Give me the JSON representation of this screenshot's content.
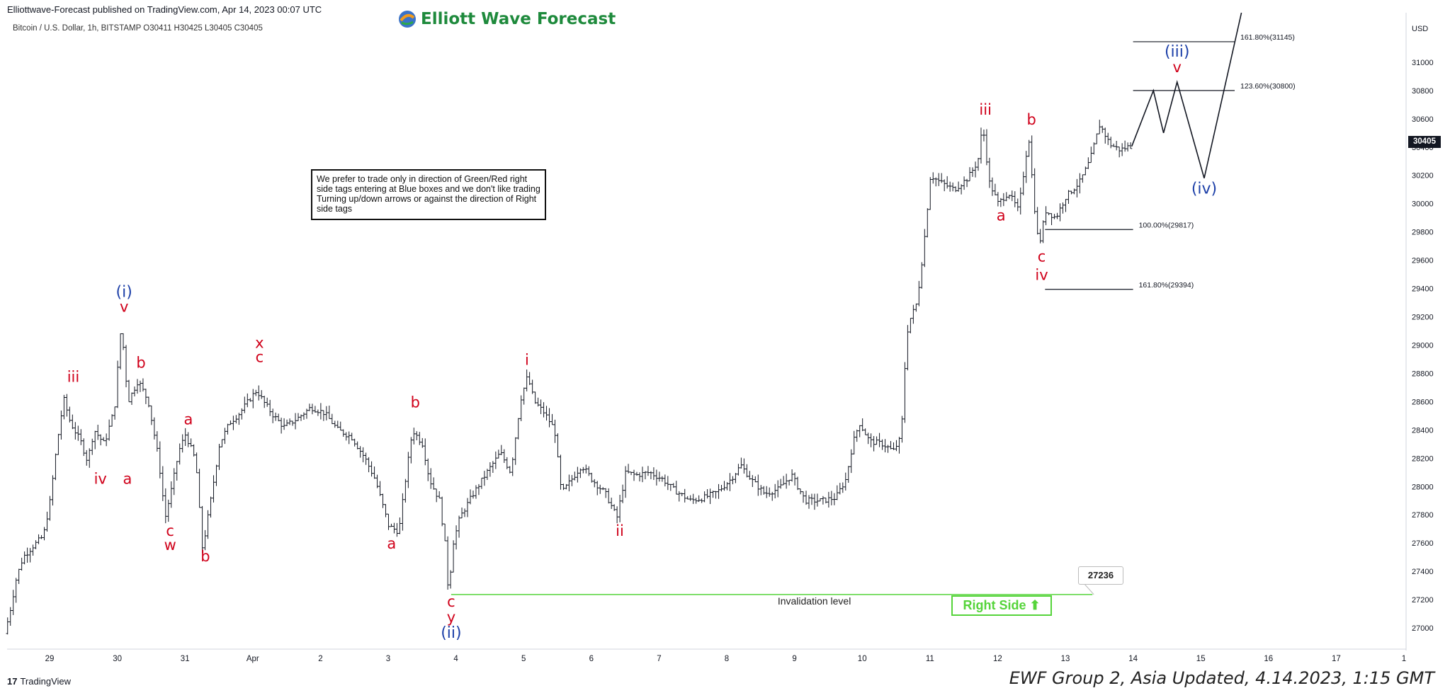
{
  "header": {
    "publisher": "Elliottwave-Forecast published on TradingView.com, Apr 14, 2023 00:07 UTC",
    "symbol_line": "Bitcoin / U.S. Dollar, 1h, BITSTAMP  O30411  H30425  L30405  C30405",
    "brand": "Elliott Wave Forecast"
  },
  "note_box": "We prefer to trade only in direction of Green/Red right side tags entering at Blue boxes and we don't like trading Turning up/down arrows or against the direction of Right side tags",
  "footer": {
    "tradingview": "TradingView",
    "tv_logo": "17",
    "update": "EWF Group 2, Asia Updated, 4.14.2023, 1:15 GMT"
  },
  "badges": {
    "last_price": "30405",
    "invalidation_value": "27236",
    "right_side": "Right Side ⬆",
    "currency": "USD"
  },
  "colors": {
    "red": "#d0021b",
    "blue": "#1c3fa8",
    "green": "#55d43a",
    "text": "#131722"
  },
  "chart_data": {
    "type": "line",
    "ylim": [
      26850,
      31350
    ],
    "y_ticks": [
      27000,
      27200,
      27400,
      27600,
      27800,
      28000,
      28200,
      28400,
      28600,
      28800,
      29000,
      29200,
      29400,
      29600,
      29800,
      30000,
      30200,
      30400,
      30600,
      30800,
      31000
    ],
    "x_ticks": [
      {
        "label": "29",
        "x": 0
      },
      {
        "label": "30",
        "x": 1
      },
      {
        "label": "31",
        "x": 2
      },
      {
        "label": "Apr",
        "x": 3
      },
      {
        "label": "2",
        "x": 4
      },
      {
        "label": "3",
        "x": 5
      },
      {
        "label": "4",
        "x": 6
      },
      {
        "label": "5",
        "x": 7
      },
      {
        "label": "6",
        "x": 8
      },
      {
        "label": "7",
        "x": 9
      },
      {
        "label": "8",
        "x": 10
      },
      {
        "label": "9",
        "x": 11
      },
      {
        "label": "10",
        "x": 12
      },
      {
        "label": "11",
        "x": 13
      },
      {
        "label": "12",
        "x": 14
      },
      {
        "label": "13",
        "x": 15
      },
      {
        "label": "14",
        "x": 16
      },
      {
        "label": "15",
        "x": 17
      },
      {
        "label": "16",
        "x": 18
      },
      {
        "label": "17",
        "x": 19
      },
      {
        "label": "1",
        "x": 20
      }
    ],
    "price_path": [
      [
        -0.62,
        26960
      ],
      [
        -0.55,
        27100
      ],
      [
        -0.45,
        27350
      ],
      [
        -0.35,
        27500
      ],
      [
        -0.2,
        27580
      ],
      [
        -0.05,
        27650
      ],
      [
        0.05,
        27900
      ],
      [
        0.15,
        28300
      ],
      [
        0.25,
        28620
      ],
      [
        0.35,
        28450
      ],
      [
        0.5,
        28320
      ],
      [
        0.6,
        28180
      ],
      [
        0.7,
        28400
      ],
      [
        0.85,
        28300
      ],
      [
        1.0,
        28550
      ],
      [
        1.1,
        29150
      ],
      [
        1.2,
        28600
      ],
      [
        1.35,
        28750
      ],
      [
        1.5,
        28600
      ],
      [
        1.65,
        28200
      ],
      [
        1.75,
        27780
      ],
      [
        1.85,
        28000
      ],
      [
        1.95,
        28250
      ],
      [
        2.05,
        28370
      ],
      [
        2.2,
        28180
      ],
      [
        2.3,
        27550
      ],
      [
        2.42,
        27900
      ],
      [
        2.55,
        28300
      ],
      [
        2.7,
        28450
      ],
      [
        2.85,
        28520
      ],
      [
        3.0,
        28620
      ],
      [
        3.1,
        28680
      ],
      [
        3.2,
        28600
      ],
      [
        3.35,
        28500
      ],
      [
        3.5,
        28420
      ],
      [
        3.7,
        28480
      ],
      [
        3.9,
        28560
      ],
      [
        4.1,
        28520
      ],
      [
        4.3,
        28400
      ],
      [
        4.5,
        28350
      ],
      [
        4.7,
        28200
      ],
      [
        4.85,
        28050
      ],
      [
        5.05,
        27720
      ],
      [
        5.2,
        27680
      ],
      [
        5.3,
        28060
      ],
      [
        5.4,
        28400
      ],
      [
        5.55,
        28300
      ],
      [
        5.65,
        28050
      ],
      [
        5.8,
        27900
      ],
      [
        5.9,
        27520
      ],
      [
        5.93,
        27236
      ],
      [
        6.0,
        27600
      ],
      [
        6.1,
        27780
      ],
      [
        6.3,
        27950
      ],
      [
        6.5,
        28100
      ],
      [
        6.7,
        28240
      ],
      [
        6.85,
        28100
      ],
      [
        7.0,
        28620
      ],
      [
        7.1,
        28780
      ],
      [
        7.2,
        28600
      ],
      [
        7.35,
        28520
      ],
      [
        7.5,
        28400
      ],
      [
        7.6,
        27950
      ],
      [
        7.75,
        28050
      ],
      [
        7.9,
        28150
      ],
      [
        8.05,
        28050
      ],
      [
        8.25,
        27950
      ],
      [
        8.42,
        27780
      ],
      [
        8.55,
        28100
      ],
      [
        8.7,
        28080
      ],
      [
        8.9,
        28100
      ],
      [
        9.1,
        28050
      ],
      [
        9.25,
        27980
      ],
      [
        9.5,
        27900
      ],
      [
        9.7,
        27920
      ],
      [
        9.9,
        27960
      ],
      [
        10.1,
        28050
      ],
      [
        10.25,
        28150
      ],
      [
        10.4,
        28050
      ],
      [
        10.6,
        27950
      ],
      [
        10.8,
        27980
      ],
      [
        11.0,
        28080
      ],
      [
        11.2,
        27900
      ],
      [
        11.45,
        27900
      ],
      [
        11.65,
        27920
      ],
      [
        11.8,
        28050
      ],
      [
        11.9,
        28300
      ],
      [
        12.0,
        28450
      ],
      [
        12.15,
        28320
      ],
      [
        12.35,
        28300
      ],
      [
        12.5,
        28250
      ],
      [
        12.62,
        28350
      ],
      [
        12.65,
        28700
      ],
      [
        12.72,
        29150
      ],
      [
        12.85,
        29300
      ],
      [
        12.95,
        29700
      ],
      [
        13.05,
        30200
      ],
      [
        13.2,
        30150
      ],
      [
        13.4,
        30100
      ],
      [
        13.6,
        30180
      ],
      [
        13.75,
        30300
      ],
      [
        13.82,
        30560
      ],
      [
        13.92,
        30150
      ],
      [
        14.05,
        30000
      ],
      [
        14.2,
        30080
      ],
      [
        14.35,
        29950
      ],
      [
        14.5,
        30480
      ],
      [
        14.58,
        30000
      ],
      [
        14.65,
        29690
      ],
      [
        14.75,
        29950
      ],
      [
        14.9,
        29900
      ],
      [
        15.05,
        30050
      ],
      [
        15.25,
        30150
      ],
      [
        15.4,
        30300
      ],
      [
        15.55,
        30560
      ],
      [
        15.7,
        30420
      ],
      [
        15.85,
        30380
      ],
      [
        15.98,
        30405
      ]
    ],
    "projection": [
      [
        15.98,
        30405
      ],
      [
        16.3,
        30800
      ],
      [
        16.45,
        30500
      ],
      [
        16.65,
        30860
      ],
      [
        17.05,
        30180
      ],
      [
        17.6,
        31350
      ]
    ],
    "fib_levels": [
      {
        "label": "161.80%(31145)",
        "value": 31145,
        "x_from": 16.0,
        "x_to": 17.5
      },
      {
        "label": "123.60%(30800)",
        "value": 30800,
        "x_from": 16.0,
        "x_to": 17.5
      },
      {
        "label": "100.00%(29817)",
        "value": 29817,
        "x_from": 14.7,
        "x_to": 16.0
      },
      {
        "label": "161.80%(29394)",
        "value": 29394,
        "x_from": 14.7,
        "x_to": 16.0
      }
    ],
    "invalidation": {
      "label": "Invalidation level",
      "value": 27236,
      "x_from": 5.93,
      "x_to": 15.4
    },
    "wave_labels": [
      {
        "text": "(i)",
        "x": 1.1,
        "y": 29340,
        "color": "blue"
      },
      {
        "text": "v",
        "x": 1.1,
        "y": 29235,
        "color": "red"
      },
      {
        "text": "iii",
        "x": 0.35,
        "y": 28740,
        "color": "red"
      },
      {
        "text": "iv",
        "x": 0.75,
        "y": 28020,
        "color": "red"
      },
      {
        "text": "a",
        "x": 1.15,
        "y": 28020,
        "color": "red"
      },
      {
        "text": "b",
        "x": 1.35,
        "y": 28840,
        "color": "red"
      },
      {
        "text": "c",
        "x": 1.78,
        "y": 27650,
        "color": "red"
      },
      {
        "text": "w",
        "x": 1.78,
        "y": 27550,
        "color": "red"
      },
      {
        "text": "a",
        "x": 2.05,
        "y": 28440,
        "color": "red"
      },
      {
        "text": "b",
        "x": 2.3,
        "y": 27470,
        "color": "red"
      },
      {
        "text": "x",
        "x": 3.1,
        "y": 28980,
        "color": "red"
      },
      {
        "text": "c",
        "x": 3.1,
        "y": 28880,
        "color": "red"
      },
      {
        "text": "a",
        "x": 5.05,
        "y": 27560,
        "color": "red"
      },
      {
        "text": "b",
        "x": 5.4,
        "y": 28560,
        "color": "red"
      },
      {
        "text": "c",
        "x": 5.93,
        "y": 27150,
        "color": "red"
      },
      {
        "text": "y",
        "x": 5.93,
        "y": 27040,
        "color": "red"
      },
      {
        "text": "(ii)",
        "x": 5.93,
        "y": 26930,
        "color": "blue"
      },
      {
        "text": "i",
        "x": 7.05,
        "y": 28860,
        "color": "red"
      },
      {
        "text": "ii",
        "x": 8.42,
        "y": 27650,
        "color": "red"
      },
      {
        "text": "iii",
        "x": 13.82,
        "y": 30630,
        "color": "red"
      },
      {
        "text": "a",
        "x": 14.05,
        "y": 29880,
        "color": "red"
      },
      {
        "text": "b",
        "x": 14.5,
        "y": 30560,
        "color": "red"
      },
      {
        "text": "c",
        "x": 14.65,
        "y": 29590,
        "color": "red"
      },
      {
        "text": "iv",
        "x": 14.65,
        "y": 29460,
        "color": "red"
      },
      {
        "text": "(iii)",
        "x": 16.65,
        "y": 31040,
        "color": "blue"
      },
      {
        "text": "v",
        "x": 16.65,
        "y": 30930,
        "color": "red"
      },
      {
        "text": "(iv)",
        "x": 17.05,
        "y": 30070,
        "color": "blue"
      }
    ]
  }
}
